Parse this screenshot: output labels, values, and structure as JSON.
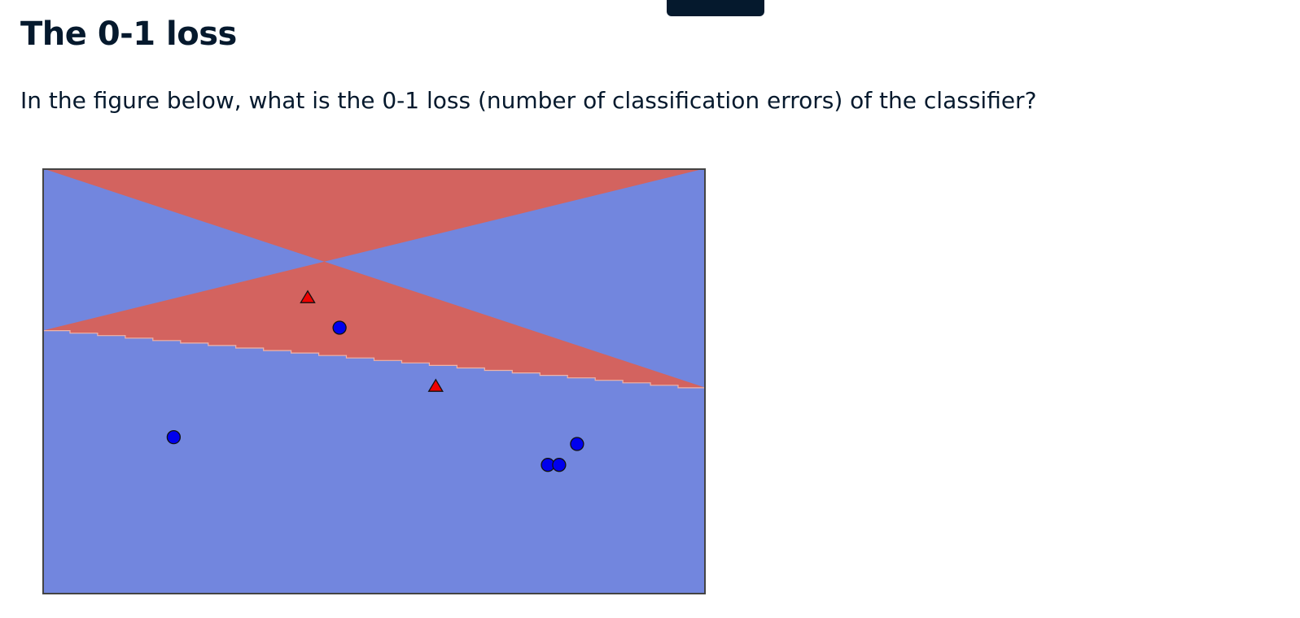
{
  "exercise": {
    "title": "The 0-1 loss",
    "question": "In the figure below, what is the 0-1 loss (number of classification errors) of the classifier?"
  },
  "colors": {
    "text": "#05192d",
    "top_tab": "#05192d",
    "region_red": "#d3635f",
    "region_blue": "#7286de",
    "boundary_line": "#f0b4a8",
    "point_blue": "#0000ee",
    "point_red": "#ee0000",
    "marker_edge": "#111111",
    "frame": "#444444"
  },
  "chart_data": {
    "type": "scatter",
    "xlim": [
      0,
      1
    ],
    "ylim": [
      0,
      1
    ],
    "axes_visible": false,
    "grid": false,
    "decision_boundary": {
      "points": [
        [
          0,
          0.622
        ],
        [
          1,
          0.482
        ]
      ],
      "upper_region": "red",
      "lower_region": "blue"
    },
    "series": [
      {
        "class": "red",
        "marker": "triangle",
        "x": [
          0.4,
          0.593
        ],
        "y": [
          0.695,
          0.487
        ]
      },
      {
        "class": "blue",
        "marker": "circle",
        "x": [
          0.448,
          0.198,
          0.806,
          0.762,
          0.779
        ],
        "y": [
          0.626,
          0.369,
          0.353,
          0.304,
          0.304
        ]
      }
    ]
  }
}
